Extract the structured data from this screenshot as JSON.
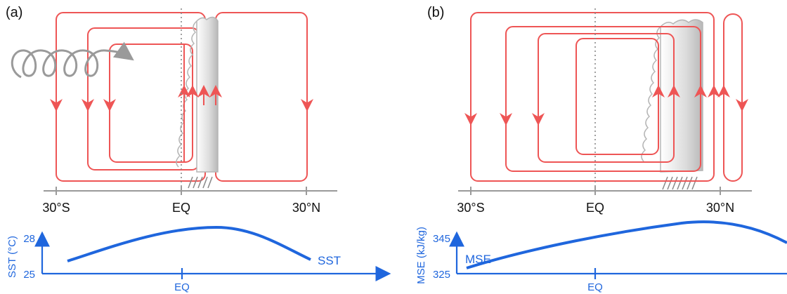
{
  "colors": {
    "circulation": "#ee5555",
    "blue": "#1f66dd",
    "axis_gray": "#9a9a9a",
    "cloud_gray": "#b5b5b5",
    "equator_line": "#888888"
  },
  "panels": [
    {
      "label": "(a)",
      "lat_ticks": [
        "30°S",
        "EQ",
        "30°N"
      ],
      "profile": {
        "variable_label": "SST",
        "ylabel": "SST (°C)",
        "y_ticks": [
          "25",
          "28"
        ],
        "x_tick": "EQ"
      }
    },
    {
      "label": "(b)",
      "lat_ticks": [
        "30°S",
        "EQ",
        "30°N"
      ],
      "profile": {
        "variable_label": "MSE",
        "ylabel": "MSE (kJ/kg)",
        "y_ticks": [
          "325",
          "345"
        ],
        "x_tick": "EQ"
      }
    }
  ]
}
